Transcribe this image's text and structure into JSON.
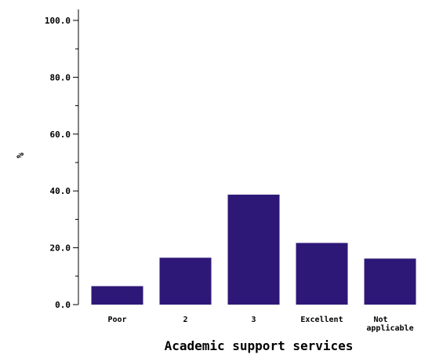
{
  "chart_data": {
    "type": "bar",
    "categories": [
      [
        "Poor"
      ],
      [
        "2"
      ],
      [
        "3"
      ],
      [
        "Excellent"
      ],
      [
        "Not",
        "applicable"
      ]
    ],
    "values": [
      6.5,
      16.5,
      38.7,
      21.7,
      16.2
    ],
    "xlabel": "Academic support services",
    "ylabel": "%",
    "ylim": [
      0,
      100
    ],
    "yticks": [
      "0.0",
      "20.0",
      "40.0",
      "60.0",
      "80.0",
      "100.0"
    ],
    "bar_color": "#2e1877",
    "grid": false
  }
}
